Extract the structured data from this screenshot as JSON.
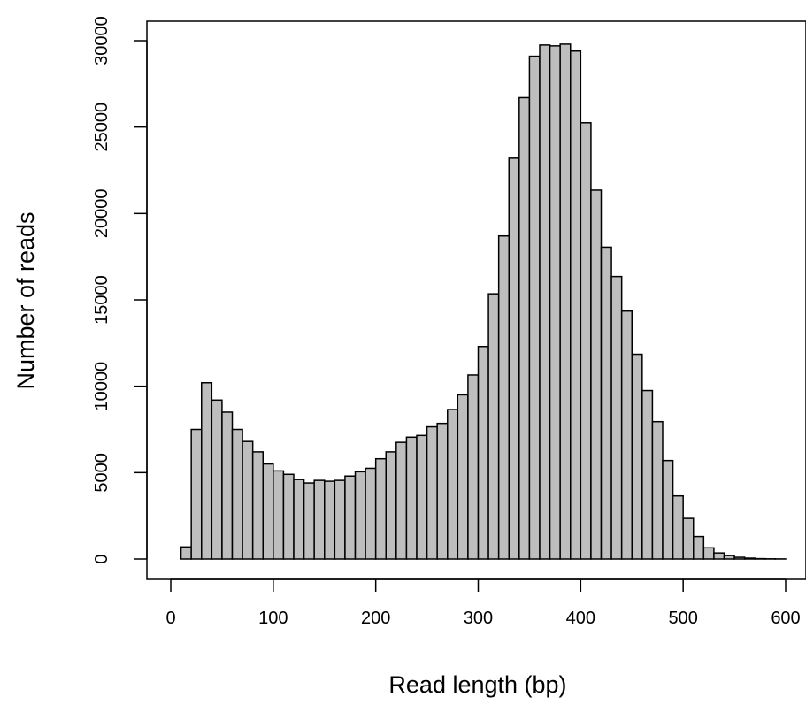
{
  "chart_data": {
    "type": "bar",
    "title": "",
    "xlabel": "Read length (bp)",
    "ylabel": "Number of reads",
    "bin_width": 10,
    "bin_starts": [
      0,
      10,
      20,
      30,
      40,
      50,
      60,
      70,
      80,
      90,
      100,
      110,
      120,
      130,
      140,
      150,
      160,
      170,
      180,
      190,
      200,
      210,
      220,
      230,
      240,
      250,
      260,
      270,
      280,
      290,
      300,
      310,
      320,
      330,
      340,
      350,
      360,
      370,
      380,
      390,
      400,
      410,
      420,
      430,
      440,
      450,
      460,
      470,
      480,
      490,
      500,
      510,
      520,
      530,
      540,
      550,
      560,
      570,
      580,
      590
    ],
    "values": [
      0,
      700,
      7500,
      10200,
      9200,
      8500,
      7500,
      6800,
      6200,
      5500,
      5100,
      4900,
      4600,
      4400,
      4550,
      4500,
      4550,
      4800,
      5050,
      5250,
      5800,
      6200,
      6750,
      7050,
      7150,
      7650,
      7850,
      8650,
      9500,
      10650,
      12300,
      15350,
      18700,
      23200,
      26700,
      29100,
      29750,
      29700,
      29800,
      29400,
      25250,
      21350,
      18050,
      16350,
      14350,
      11850,
      9750,
      7950,
      5700,
      3650,
      2350,
      1300,
      650,
      350,
      200,
      100,
      50,
      20,
      10,
      5
    ],
    "xlim": [
      0,
      600
    ],
    "ylim": [
      0,
      30000
    ],
    "xticks": [
      0,
      100,
      200,
      300,
      400,
      500,
      600
    ],
    "yticks": [
      0,
      5000,
      10000,
      15000,
      20000,
      25000,
      30000
    ],
    "xtick_labels": [
      "0",
      "100",
      "200",
      "300",
      "400",
      "500",
      "600"
    ],
    "ytick_labels": [
      "0",
      "5000",
      "10000",
      "15000",
      "20000",
      "25000",
      "30000"
    ],
    "bar_color": "#bebebe",
    "edge_color": "#000000",
    "grid": false,
    "legend": "none"
  }
}
